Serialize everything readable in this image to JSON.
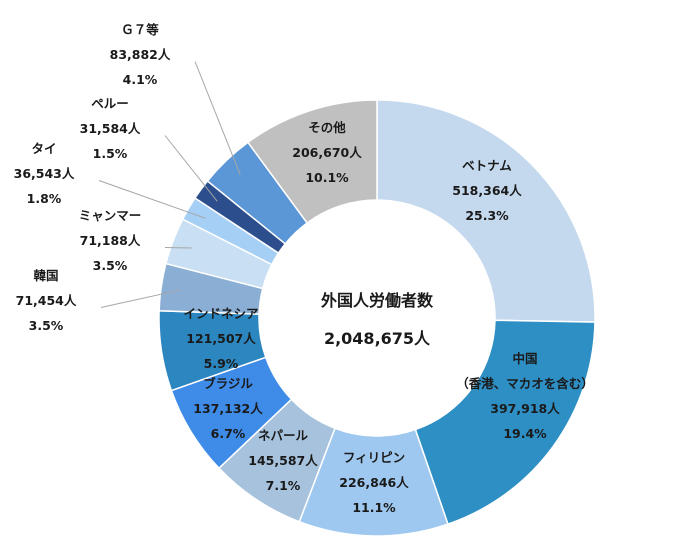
{
  "chart_data": {
    "type": "pie",
    "style": "donut",
    "center_title": "外国人労働者数",
    "center_value": "2,048,675人",
    "slices": [
      {
        "name": "ベトナム",
        "name2": "",
        "value": 518364,
        "value_label": "518,364人",
        "percent": 25.3,
        "percent_label": "25.3%",
        "color": "#c5d9ee"
      },
      {
        "name": "中国",
        "name2": "（香港、マカオを含む）",
        "value": 397918,
        "value_label": "397,918人",
        "percent": 19.4,
        "percent_label": "19.4%",
        "color": "#2e8fc5"
      },
      {
        "name": "フィリピン",
        "name2": "",
        "value": 226846,
        "value_label": "226,846人",
        "percent": 11.1,
        "percent_label": "11.1%",
        "color": "#9ec8ef"
      },
      {
        "name": "ネパール",
        "name2": "",
        "value": 145587,
        "value_label": "145,587人",
        "percent": 7.1,
        "percent_label": "7.1%",
        "color": "#a7c2dd"
      },
      {
        "name": "ブラジル",
        "name2": "",
        "value": 137132,
        "value_label": "137,132人",
        "percent": 6.7,
        "percent_label": "6.7%",
        "color": "#3f8be8"
      },
      {
        "name": "インドネシア",
        "name2": "",
        "value": 121507,
        "value_label": "121,507人",
        "percent": 5.9,
        "percent_label": "5.9%",
        "color": "#2c86c0"
      },
      {
        "name": "韓国",
        "name2": "",
        "value": 71454,
        "value_label": "71,454人",
        "percent": 3.5,
        "percent_label": "3.5%",
        "color": "#8aaed4"
      },
      {
        "name": "ミャンマー",
        "name2": "",
        "value": 71188,
        "value_label": "71,188人",
        "percent": 3.5,
        "percent_label": "3.5%",
        "color": "#c9dff4"
      },
      {
        "name": "タイ",
        "name2": "",
        "value": 36543,
        "value_label": "36,543人",
        "percent": 1.8,
        "percent_label": "1.8%",
        "color": "#a6cff5"
      },
      {
        "name": "ペルー",
        "name2": "",
        "value": 31584,
        "value_label": "31,584人",
        "percent": 1.5,
        "percent_label": "1.5%",
        "color": "#2c4e8c"
      },
      {
        "name": "Ｇ７等",
        "name2": "",
        "value": 83882,
        "value_label": "83,882人",
        "percent": 4.1,
        "percent_label": "4.1%",
        "color": "#5b96d6"
      },
      {
        "name": "その他",
        "name2": "",
        "value": 206670,
        "value_label": "206,670人",
        "percent": 10.1,
        "percent_label": "10.1%",
        "color": "#c0c0c0"
      }
    ]
  }
}
